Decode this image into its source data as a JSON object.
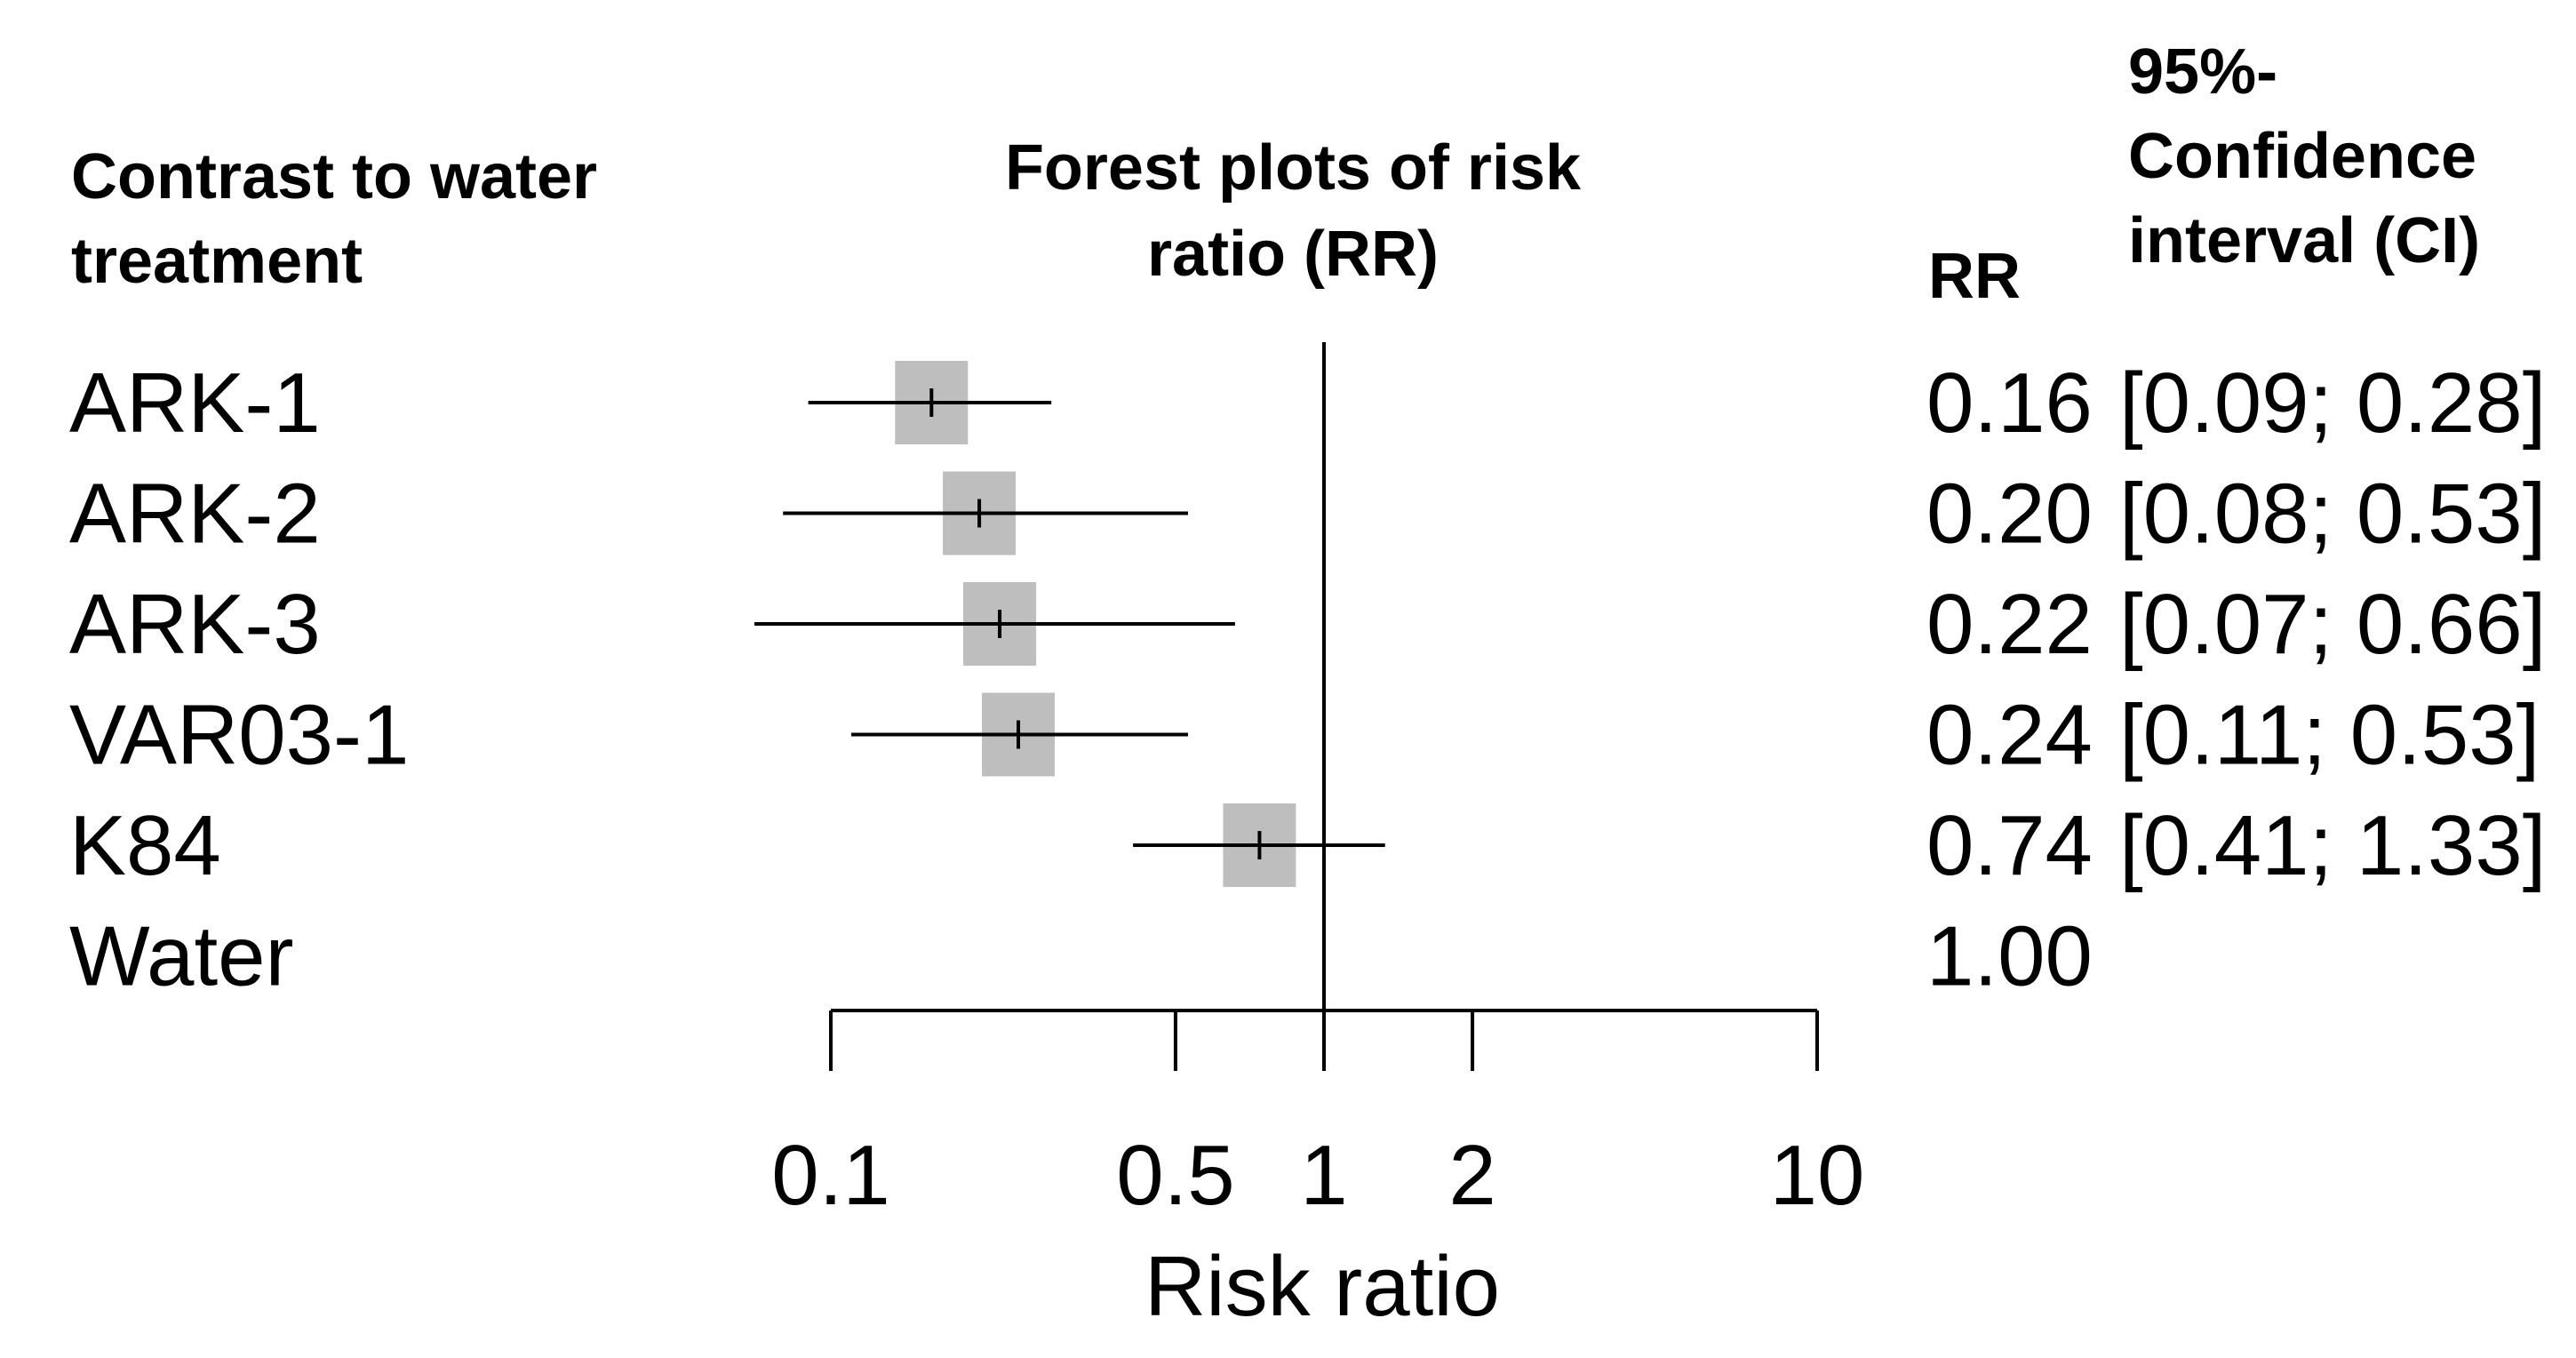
{
  "chart_data": {
    "type": "forest",
    "title": "Forest plots of risk ratio (RR)",
    "title_lines": [
      "Forest plots of risk",
      "ratio (RR)"
    ],
    "left_header_lines": [
      "Contrast to water",
      "treatment"
    ],
    "rr_header": "RR",
    "ci_header_lines": [
      "95%-",
      "Confidence",
      "interval (CI)"
    ],
    "xlabel": "Risk ratio",
    "x_scale": "log",
    "xlim": [
      0.1,
      10
    ],
    "x_ticks": [
      0.1,
      0.5,
      1,
      2,
      10
    ],
    "x_tick_labels": [
      "0.1",
      "0.5",
      "1",
      "2",
      "10"
    ],
    "reference_line": 1,
    "rows": [
      {
        "label": "ARK-1",
        "rr": 0.16,
        "lower": 0.09,
        "upper": 0.28,
        "rr_text": "0.16",
        "ci_text": "[0.09; 0.28]"
      },
      {
        "label": "ARK-2",
        "rr": 0.2,
        "lower": 0.08,
        "upper": 0.53,
        "rr_text": "0.20",
        "ci_text": "[0.08; 0.53]"
      },
      {
        "label": "ARK-3",
        "rr": 0.22,
        "lower": 0.07,
        "upper": 0.66,
        "rr_text": "0.22",
        "ci_text": "[0.07; 0.66]"
      },
      {
        "label": "VAR03-1",
        "rr": 0.24,
        "lower": 0.11,
        "upper": 0.53,
        "rr_text": "0.24",
        "ci_text": "[0.11; 0.53]"
      },
      {
        "label": "K84",
        "rr": 0.74,
        "lower": 0.41,
        "upper": 1.33,
        "rr_text": "0.74",
        "ci_text": "[0.41; 1.33]"
      },
      {
        "label": "Water",
        "rr": null,
        "lower": null,
        "upper": null,
        "rr_text": "1.00",
        "ci_text": ""
      }
    ],
    "colors": {
      "box": "#bebebe",
      "line": "#000000"
    }
  }
}
